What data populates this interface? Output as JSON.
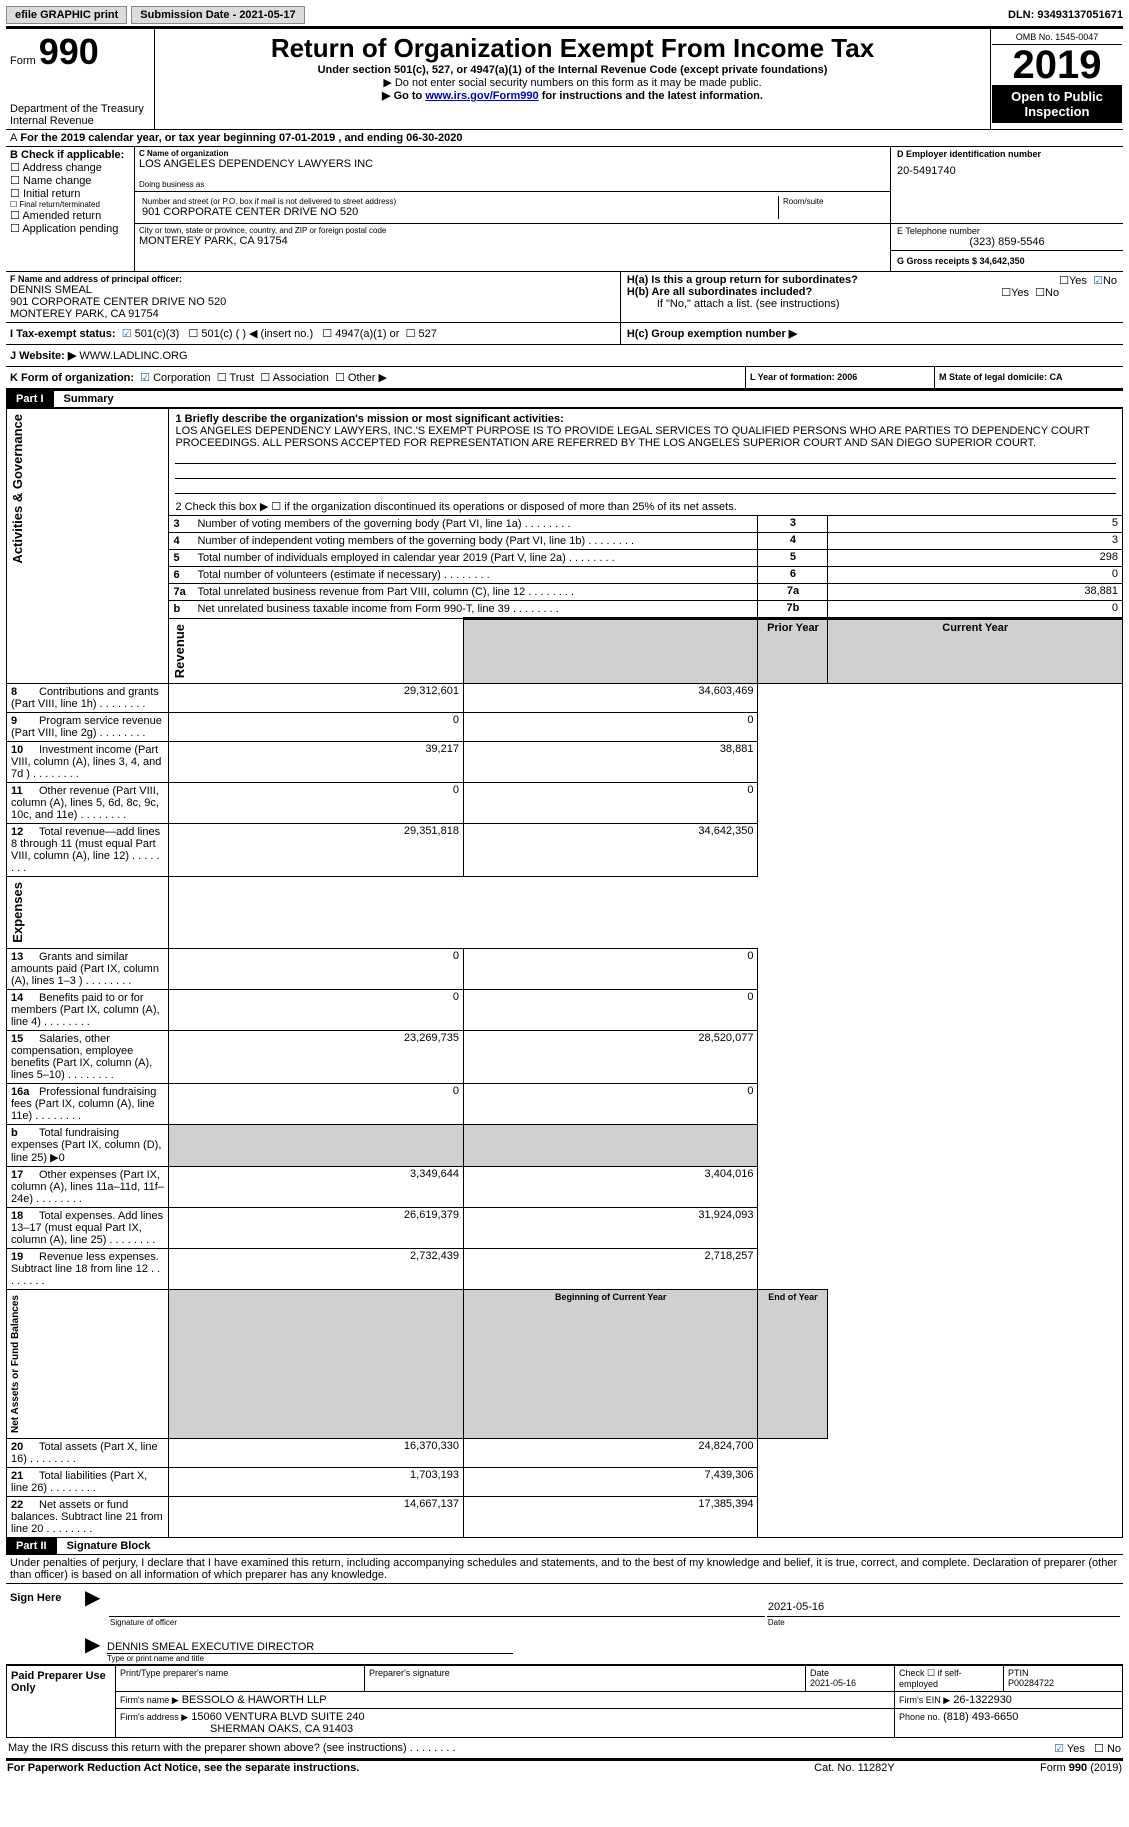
{
  "top": {
    "efile": "efile GRAPHIC print",
    "subdate_label": "Submission Date - 2021-05-17",
    "dln_label": "DLN: 93493137051671"
  },
  "hdr": {
    "form_word": "Form",
    "form_num": "990",
    "dept1": "Department of the Treasury",
    "dept2": "Internal Revenue",
    "title": "Return of Organization Exempt From Income Tax",
    "sub1": "Under section 501(c), 527, or 4947(a)(1) of the Internal Revenue Code (except private foundations)",
    "sub2": "▶ Do not enter social security numbers on this form as it may be made public.",
    "sub3_pre": "▶ Go to ",
    "sub3_link": "www.irs.gov/Form990",
    "sub3_post": " for instructions and the latest information.",
    "omb": "OMB No. 1545-0047",
    "year": "2019",
    "open": "Open to Public Inspection"
  },
  "a": {
    "line": "For the 2019 calendar year, or tax year beginning 07-01-2019    , and ending 06-30-2020"
  },
  "b": {
    "label": "B Check if applicable:",
    "opts": [
      "Address change",
      "Name change",
      "Initial return",
      "Final return/terminated",
      "Amended return",
      "Application pending"
    ]
  },
  "c": {
    "name_lbl": "C Name of organization",
    "name": "LOS ANGELES DEPENDENCY LAWYERS INC",
    "dba_lbl": "Doing business as",
    "addr_lbl": "Number and street (or P.O. box if mail is not delivered to street address)",
    "room_lbl": "Room/suite",
    "addr": "901 CORPORATE CENTER DRIVE NO 520",
    "city_lbl": "City or town, state or province, country, and ZIP or foreign postal code",
    "city": "MONTEREY PARK, CA  91754"
  },
  "d": {
    "lbl": "D Employer identification number",
    "val": "20-5491740"
  },
  "e": {
    "lbl": "E Telephone number",
    "val": "(323) 859-5546"
  },
  "g": {
    "lbl": "G Gross receipts $ 34,642,350"
  },
  "f": {
    "lbl": "F  Name and address of principal officer:",
    "l1": "DENNIS SMEAL",
    "l2": "901 CORPORATE CENTER DRIVE NO 520",
    "l3": "MONTEREY PARK, CA  91754"
  },
  "h": {
    "a_lbl": "H(a)  Is this a group return for subordinates?",
    "b_lbl": "H(b)  Are all subordinates included?",
    "b_note": "If \"No,\" attach a list. (see instructions)",
    "c_lbl": "H(c)  Group exemption number ▶",
    "yes": "Yes",
    "no": "No"
  },
  "i": {
    "lbl": "I    Tax-exempt status:",
    "o1": "501(c)(3)",
    "o2": "501(c) (  ) ◀ (insert no.)",
    "o3": "4947(a)(1) or",
    "o4": "527"
  },
  "j": {
    "lbl": "J    Website: ▶",
    "val": "WWW.LADLINC.ORG"
  },
  "k": {
    "lbl": "K Form of organization:",
    "o1": "Corporation",
    "o2": "Trust",
    "o3": "Association",
    "o4": "Other ▶"
  },
  "l": {
    "lbl": "L Year of formation: 2006"
  },
  "m": {
    "lbl": "M State of legal domicile: CA"
  },
  "part1": {
    "part": "Part I",
    "name": "Summary"
  },
  "mission": {
    "q": "1   Briefly describe the organization's mission or most significant activities:",
    "txt": "LOS ANGELES DEPENDENCY LAWYERS, INC.'S EXEMPT PURPOSE IS TO PROVIDE LEGAL SERVICES TO QUALIFIED PERSONS WHO ARE PARTIES TO DEPENDENCY COURT PROCEEDINGS. ALL PERSONS ACCEPTED FOR REPRESENTATION ARE REFERRED BY THE LOS ANGELES SUPERIOR COURT AND SAN DIEGO SUPERIOR COURT."
  },
  "gov": {
    "q2": "2   Check this box ▶ ☐ if the organization discontinued its operations or disposed of more than 25% of its net assets.",
    "rows": [
      {
        "n": "3",
        "t": "Number of voting members of the governing body (Part VI, line 1a)",
        "k": "3",
        "v": "5"
      },
      {
        "n": "4",
        "t": "Number of independent voting members of the governing body (Part VI, line 1b)",
        "k": "4",
        "v": "3"
      },
      {
        "n": "5",
        "t": "Total number of individuals employed in calendar year 2019 (Part V, line 2a)",
        "k": "5",
        "v": "298"
      },
      {
        "n": "6",
        "t": "Total number of volunteers (estimate if necessary)",
        "k": "6",
        "v": "0"
      },
      {
        "n": "7a",
        "t": "Total unrelated business revenue from Part VIII, column (C), line 12",
        "k": "7a",
        "v": "38,881"
      },
      {
        "n": "b",
        "t": "Net unrelated business taxable income from Form 990-T, line 39",
        "k": "7b",
        "v": "0"
      }
    ],
    "vtab": "Activities & Governance"
  },
  "rev": {
    "vtab": "Revenue",
    "hdr_prior": "Prior Year",
    "hdr_curr": "Current Year",
    "rows": [
      {
        "n": "8",
        "t": "Contributions and grants (Part VIII, line 1h)",
        "p": "29,312,601",
        "c": "34,603,469"
      },
      {
        "n": "9",
        "t": "Program service revenue (Part VIII, line 2g)",
        "p": "0",
        "c": "0"
      },
      {
        "n": "10",
        "t": "Investment income (Part VIII, column (A), lines 3, 4, and 7d )",
        "p": "39,217",
        "c": "38,881"
      },
      {
        "n": "11",
        "t": "Other revenue (Part VIII, column (A), lines 5, 6d, 8c, 9c, 10c, and 11e)",
        "p": "0",
        "c": "0"
      },
      {
        "n": "12",
        "t": "Total revenue—add lines 8 through 11 (must equal Part VIII, column (A), line 12)",
        "p": "29,351,818",
        "c": "34,642,350"
      }
    ]
  },
  "exp": {
    "vtab": "Expenses",
    "rows": [
      {
        "n": "13",
        "t": "Grants and similar amounts paid (Part IX, column (A), lines 1–3 )",
        "p": "0",
        "c": "0"
      },
      {
        "n": "14",
        "t": "Benefits paid to or for members (Part IX, column (A), line 4)",
        "p": "0",
        "c": "0"
      },
      {
        "n": "15",
        "t": "Salaries, other compensation, employee benefits (Part IX, column (A), lines 5–10)",
        "p": "23,269,735",
        "c": "28,520,077"
      },
      {
        "n": "16a",
        "t": "Professional fundraising fees (Part IX, column (A), line 11e)",
        "p": "0",
        "c": "0"
      },
      {
        "n": "b",
        "t": "Total fundraising expenses (Part IX, column (D), line 25) ▶0",
        "p": "",
        "c": ""
      },
      {
        "n": "17",
        "t": "Other expenses (Part IX, column (A), lines 11a–11d, 11f–24e)",
        "p": "3,349,644",
        "c": "3,404,016"
      },
      {
        "n": "18",
        "t": "Total expenses. Add lines 13–17 (must equal Part IX, column (A), line 25)",
        "p": "26,619,379",
        "c": "31,924,093"
      },
      {
        "n": "19",
        "t": "Revenue less expenses. Subtract line 18 from line 12",
        "p": "2,732,439",
        "c": "2,718,257"
      }
    ]
  },
  "net": {
    "vtab": "Net Assets or Fund Balances",
    "hdr_beg": "Beginning of Current Year",
    "hdr_end": "End of Year",
    "rows": [
      {
        "n": "20",
        "t": "Total assets (Part X, line 16)",
        "p": "16,370,330",
        "c": "24,824,700"
      },
      {
        "n": "21",
        "t": "Total liabilities (Part X, line 26)",
        "p": "1,703,193",
        "c": "7,439,306"
      },
      {
        "n": "22",
        "t": "Net assets or fund balances. Subtract line 21 from line 20",
        "p": "14,667,137",
        "c": "17,385,394"
      }
    ]
  },
  "part2": {
    "part": "Part II",
    "name": "Signature Block"
  },
  "sig": {
    "decl": "Under penalties of perjury, I declare that I have examined this return, including accompanying schedules and statements, and to the best of my knowledge and belief, it is true, correct, and complete. Declaration of preparer (other than officer) is based on all information of which preparer has any knowledge.",
    "sign_here": "Sign Here",
    "date": "2021-05-16",
    "sig_lbl": "Signature of officer",
    "date_lbl": "Date",
    "name": "DENNIS SMEAL  EXECUTIVE DIRECTOR",
    "name_lbl": "Type or print name and title"
  },
  "prep": {
    "hdr": "Paid Preparer Use Only",
    "r1": {
      "c1": "Print/Type preparer's name",
      "c2": "Preparer's signature",
      "c3_lbl": "Date",
      "c3": "2021-05-16",
      "c4": "Check ☐ if self-employed",
      "c5_lbl": "PTIN",
      "c5": "P00284722"
    },
    "r2": {
      "lbl": "Firm's name    ▶",
      "val": "BESSOLO & HAWORTH LLP",
      "ein_lbl": "Firm's EIN ▶",
      "ein": "26-1322930"
    },
    "r3": {
      "lbl": "Firm's address ▶",
      "l1": "15060 VENTURA BLVD SUITE 240",
      "l2": "SHERMAN OAKS, CA  91403",
      "ph_lbl": "Phone no.",
      "ph": "(818) 493-6650"
    }
  },
  "footer": {
    "q": "May the IRS discuss this return with the preparer shown above? (see instructions)",
    "yes": "Yes",
    "no": "No",
    "left": "For Paperwork Reduction Act Notice, see the separate instructions.",
    "mid": "Cat. No. 11282Y",
    "right": "Form 990 (2019)"
  }
}
